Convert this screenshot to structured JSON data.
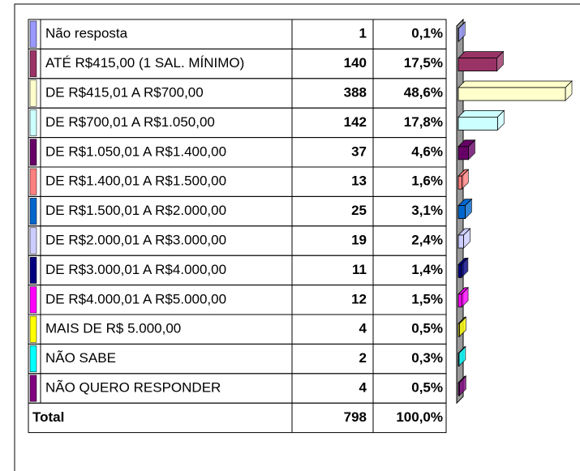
{
  "chart_data": {
    "type": "bar",
    "orientation": "horizontal",
    "categories": [
      "Não resposta",
      "ATÉ R$415,00 (1 SAL. MÍNIMO)",
      "DE R$415,01 A R$700,00",
      "DE R$700,01 A R$1.050,00",
      "DE R$1.050,01 A R$1.400,00",
      "DE R$1.400,01 A R$1.500,00",
      "DE R$1.500,01 A R$2.000,00",
      "DE R$2.000,01 A R$3.000,00",
      "DE R$3.000,01 A R$4.000,00",
      "DE R$4.000,01 A R$5.000,00",
      "MAIS DE R$ 5.000,00",
      "NÃO SABE",
      "NÃO QUERO RESPONDER"
    ],
    "counts": [
      1,
      140,
      388,
      142,
      37,
      13,
      25,
      19,
      11,
      12,
      4,
      2,
      4
    ],
    "values": [
      0.1,
      17.5,
      48.6,
      17.8,
      4.6,
      1.6,
      3.1,
      2.4,
      1.4,
      1.5,
      0.5,
      0.3,
      0.5
    ],
    "value_labels": [
      "0,1%",
      "17,5%",
      "48,6%",
      "17,8%",
      "4,6%",
      "1,6%",
      "3,1%",
      "2,4%",
      "1,4%",
      "1,5%",
      "0,5%",
      "0,3%",
      "0,5%"
    ],
    "colors": [
      "#9999ff",
      "#993366",
      "#ffffcc",
      "#ccffff",
      "#660066",
      "#ff8080",
      "#0066cc",
      "#ccccff",
      "#000080",
      "#ff00ff",
      "#ffff00",
      "#00ffff",
      "#800080"
    ],
    "total": {
      "label": "Total",
      "count": 798,
      "percent": 100,
      "percent_label": "100,0%"
    }
  }
}
